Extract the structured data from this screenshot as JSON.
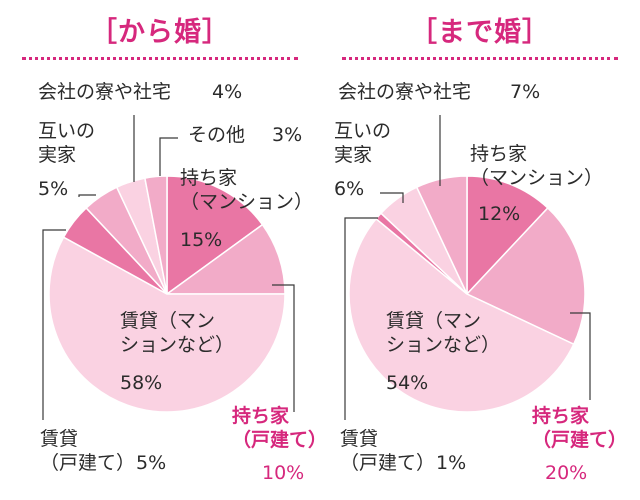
{
  "chart_data": [
    {
      "type": "pie",
      "title": "［から婚］",
      "slices": [
        {
          "label": "持ち家（マンション）",
          "label_lines": [
            "持ち家",
            "（マンション）"
          ],
          "value": 15,
          "value_text": "15%",
          "color": "#e976a4"
        },
        {
          "label": "持ち家（戸建て）",
          "label_lines": [
            "持ち家",
            "（戸建て）"
          ],
          "value": 10,
          "value_text": "10%",
          "color": "#f2abc8",
          "accent": true
        },
        {
          "label": "賃貸（マンションなど）",
          "label_lines": [
            "賃貸（マン",
            "ションなど）"
          ],
          "value": 58,
          "value_text": "58%",
          "color": "#fad2e2"
        },
        {
          "label": "賃貸（戸建て）",
          "label_lines": [
            "賃貸",
            "（戸建て）"
          ],
          "value": 5,
          "value_text": "5%",
          "color": "#e976a4"
        },
        {
          "label": "互いの実家",
          "label_lines": [
            "互いの",
            "実家"
          ],
          "value": 5,
          "value_text": "5%",
          "color": "#f2abc8"
        },
        {
          "label": "会社の寮や社宅",
          "label_lines": [
            "会社の寮や社宅"
          ],
          "value": 4,
          "value_text": "4%",
          "color": "#fad2e2"
        },
        {
          "label": "その他",
          "label_lines": [
            "その他"
          ],
          "value": 3,
          "value_text": "3%",
          "color": "#f2abc8"
        }
      ]
    },
    {
      "type": "pie",
      "title": "［まで婚］",
      "slices": [
        {
          "label": "持ち家（マンション）",
          "label_lines": [
            "持ち家",
            "（マンション）"
          ],
          "value": 12,
          "value_text": "12%",
          "color": "#e976a4"
        },
        {
          "label": "持ち家（戸建て）",
          "label_lines": [
            "持ち家",
            "（戸建て）"
          ],
          "value": 20,
          "value_text": "20%",
          "color": "#f2abc8",
          "accent": true
        },
        {
          "label": "賃貸（マンションなど）",
          "label_lines": [
            "賃貸（マン",
            "ションなど）"
          ],
          "value": 54,
          "value_text": "54%",
          "color": "#fad2e2"
        },
        {
          "label": "賃貸（戸建て）",
          "label_lines": [
            "賃貸",
            "（戸建て）"
          ],
          "value": 1,
          "value_text": "1%",
          "color": "#e976a4"
        },
        {
          "label": "互いの実家",
          "label_lines": [
            "互いの",
            "実家"
          ],
          "value": 6,
          "value_text": "6%",
          "color": "#fad2e2"
        },
        {
          "label": "会社の寮や社宅",
          "label_lines": [
            "会社の寮や社宅"
          ],
          "value": 7,
          "value_text": "7%",
          "color": "#f2abc8"
        }
      ]
    }
  ],
  "colors": {
    "accent": "#d6287d",
    "dark_pink": "#e976a4",
    "mid_pink": "#f2abc8",
    "light_pink": "#fad2e2"
  }
}
